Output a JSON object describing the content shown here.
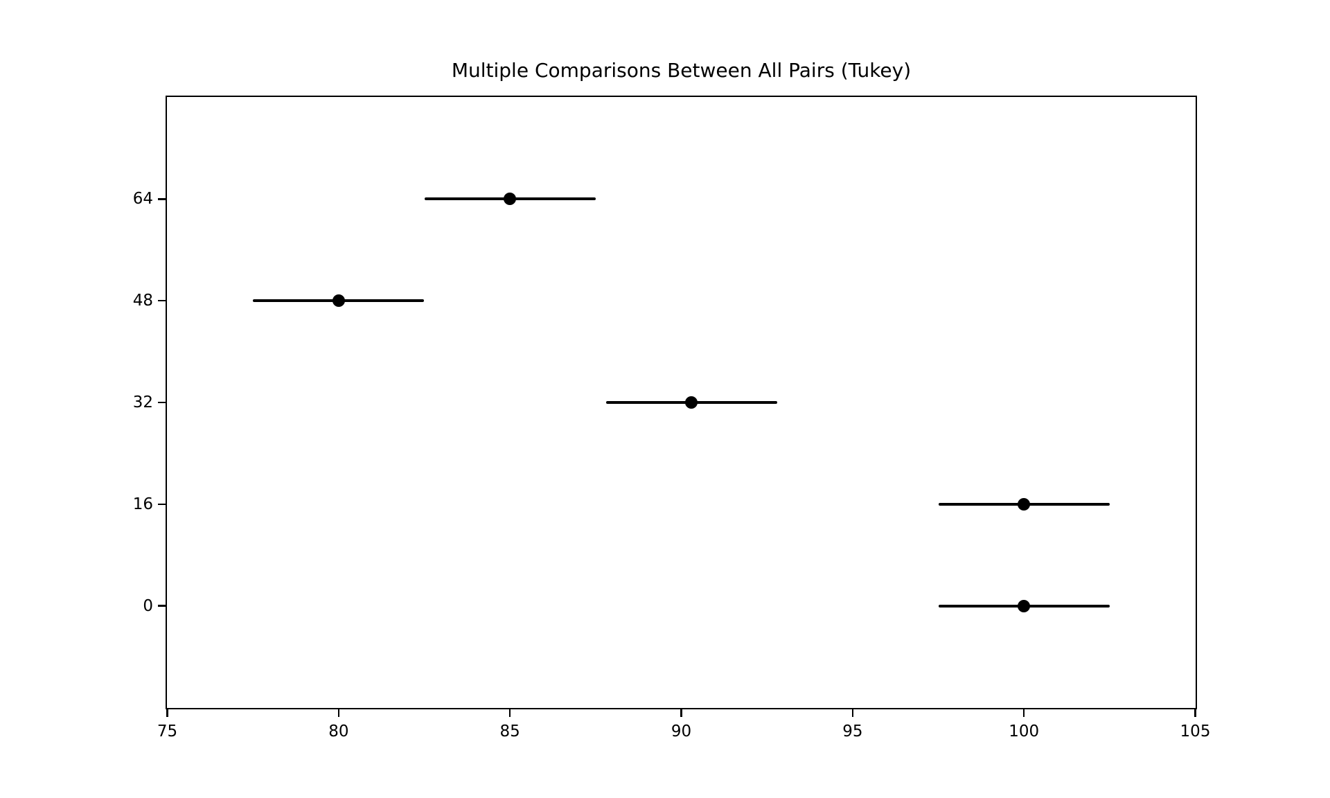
{
  "figure": {
    "background": "#ffffff",
    "foreground": "#000000"
  },
  "chart_data": {
    "type": "scatter",
    "subtype": "tukey-simultaneous-confidence-intervals",
    "title": "Multiple Comparisons Between All Pairs (Tukey)",
    "xlabel": "",
    "ylabel": "",
    "xlim": [
      75,
      105
    ],
    "x_ticks": [
      75,
      80,
      85,
      90,
      95,
      100,
      105
    ],
    "y_categories_top_to_bottom": [
      "64",
      "48",
      "32",
      "16",
      "0"
    ],
    "series": [
      {
        "group": "64",
        "mean": 85.0,
        "ci_low": 82.5,
        "ci_high": 87.5
      },
      {
        "group": "48",
        "mean": 80.0,
        "ci_low": 77.5,
        "ci_high": 82.5
      },
      {
        "group": "32",
        "mean": 90.3,
        "ci_low": 87.8,
        "ci_high": 92.8
      },
      {
        "group": "16",
        "mean": 100.0,
        "ci_low": 97.5,
        "ci_high": 102.5
      },
      {
        "group": "0",
        "mean": 100.0,
        "ci_low": 97.5,
        "ci_high": 102.5
      }
    ],
    "grid": false,
    "legend": "none",
    "marker": {
      "shape": "circle",
      "color": "#000000"
    },
    "line_color": "#000000"
  }
}
